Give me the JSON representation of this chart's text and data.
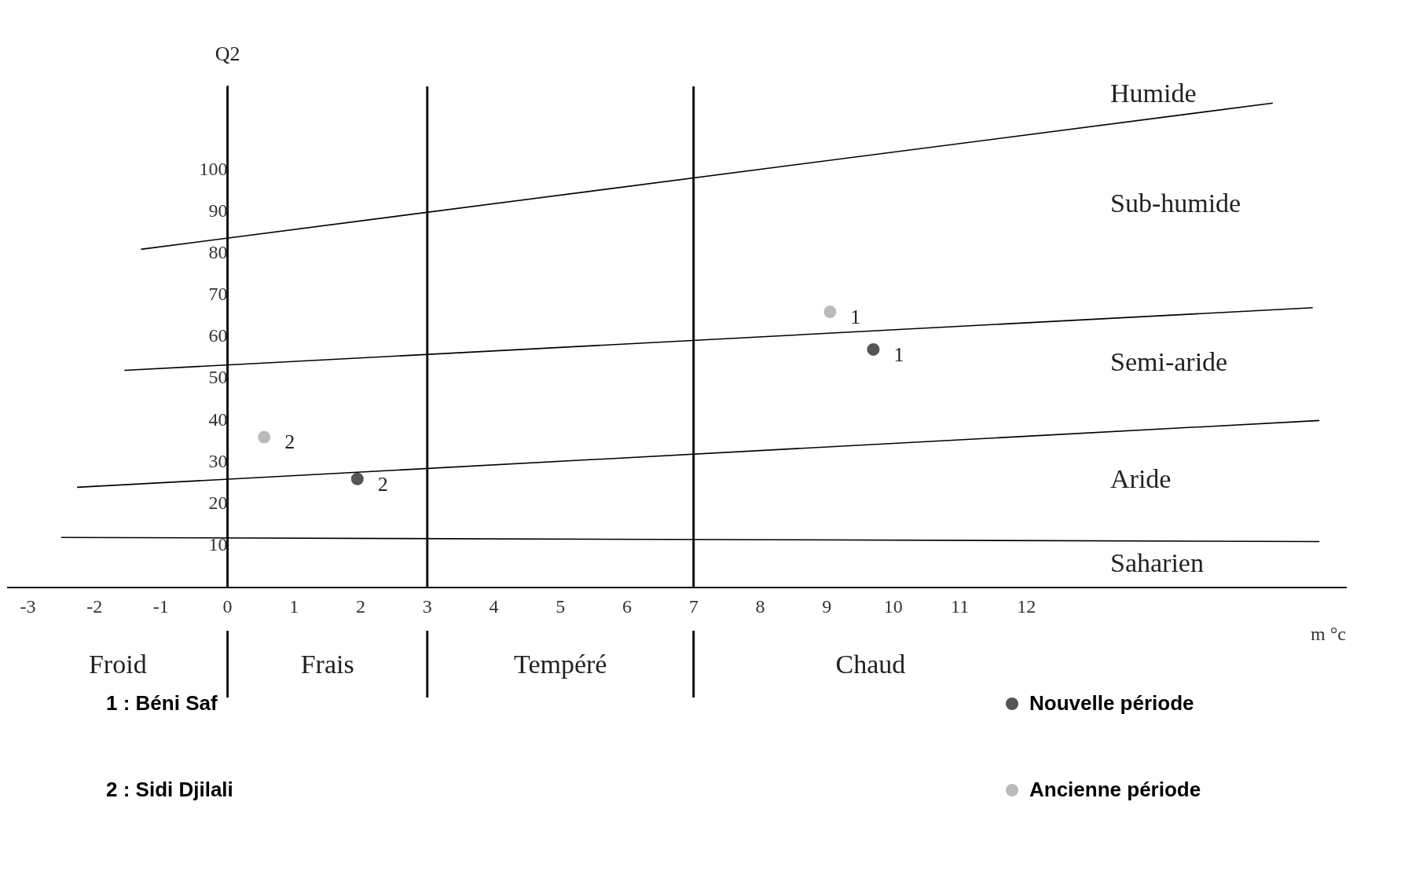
{
  "chart_data": {
    "type": "scatter",
    "xlabel": "m °c",
    "ylabel": "Q2",
    "xlim": [
      -3.3,
      16.8
    ],
    "xticks": [
      -3,
      -2,
      -1,
      0,
      1,
      2,
      3,
      4,
      5,
      6,
      7,
      8,
      9,
      10,
      11,
      12
    ],
    "ylim": [
      0,
      120
    ],
    "yticks": [
      10,
      20,
      30,
      40,
      50,
      60,
      70,
      80,
      90,
      100
    ],
    "grid": false,
    "legend": "bottom right",
    "marker": "circle",
    "series": [
      {
        "type": "line",
        "marker": "none",
        "color": "#000000",
        "x": [
          -1.3,
          15.7
        ],
        "values": [
          81,
          116
        ]
      },
      {
        "type": "line",
        "marker": "none",
        "color": "#000000",
        "x": [
          -1.55,
          16.3
        ],
        "values": [
          52,
          67
        ]
      },
      {
        "type": "line",
        "marker": "none",
        "color": "#000000",
        "x": [
          -2.26,
          16.4
        ],
        "values": [
          24,
          40
        ]
      },
      {
        "type": "line",
        "marker": "none",
        "color": "#000000",
        "x": [
          -2.5,
          16.4
        ],
        "values": [
          12,
          11
        ]
      },
      {
        "name": "Nouvelle période",
        "color": "#555555",
        "x": [
          9.7,
          1.95
        ],
        "values": [
          57,
          26
        ]
      },
      {
        "name": "Ancienne période",
        "color": "#bbbbbb",
        "x": [
          9.05,
          0.55
        ],
        "values": [
          66,
          36
        ]
      }
    ],
    "ref_lines": [
      {
        "axis": "x",
        "value": 0
      },
      {
        "axis": "x",
        "value": 3
      },
      {
        "axis": "x",
        "value": 7
      }
    ],
    "annotations": [
      {
        "text": "1",
        "x": 9.7,
        "y": 57
      },
      {
        "text": "1",
        "x": 9.05,
        "y": 66
      },
      {
        "text": "2",
        "x": 1.95,
        "y": 26
      },
      {
        "text": "2",
        "x": 0.55,
        "y": 36
      },
      "Humide",
      "Sub-humide",
      "Semi-aride",
      "Aride",
      "Saharien",
      "Froid",
      "Frais",
      "Tempéré",
      "Chaud",
      "1 : Béni Saf",
      "2 : Sidi Djilali"
    ]
  }
}
